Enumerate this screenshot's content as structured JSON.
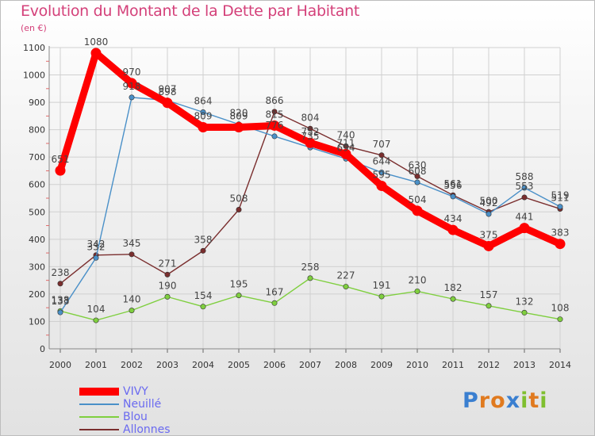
{
  "header": {
    "title": "Evolution du Montant de la Dette par Habitant",
    "unit": "(en €)"
  },
  "logo": {
    "text": "Proxiti"
  },
  "chart_data": {
    "type": "line",
    "title": "Evolution du Montant de la Dette par Habitant",
    "ylabel": "(en €)",
    "x": [
      "2000",
      "2001",
      "2002",
      "2003",
      "2004",
      "2005",
      "2006",
      "2007",
      "2008",
      "2009",
      "2010",
      "2011",
      "2012",
      "2013",
      "2014"
    ],
    "ylim": [
      0,
      1100
    ],
    "yticks": [
      "0",
      "100",
      "200",
      "300",
      "400",
      "500",
      "600",
      "700",
      "800",
      "900",
      "1000",
      "1100"
    ],
    "grid": true,
    "legend": "bottom-left",
    "series": [
      {
        "name": "VIVY",
        "color": "#ff0000",
        "values": [
          651,
          1080,
          970,
          898,
          809,
          809,
          815,
          752,
          711,
          595,
          504,
          434,
          375,
          441,
          383
        ],
        "labels": [
          "651",
          "1080",
          "970",
          "898",
          "809",
          "809",
          "815",
          "752",
          "711",
          "595",
          "504",
          "434",
          "375",
          "441",
          "383"
        ]
      },
      {
        "name": "Neuillé",
        "color": "#4a90c8",
        "values": [
          133,
          332,
          918,
          907,
          864,
          820,
          776,
          735,
          694,
          644,
          608,
          556,
          492,
          588,
          519
        ],
        "labels": [
          "133",
          "332",
          "918",
          "907",
          "864",
          "820",
          "776",
          "735",
          "694",
          "644",
          "608",
          "556",
          "492",
          "588",
          "519"
        ]
      },
      {
        "name": "Blou",
        "color": "#7fcf3f",
        "values": [
          138,
          104,
          140,
          190,
          154,
          195,
          167,
          258,
          227,
          191,
          210,
          182,
          157,
          132,
          108
        ],
        "labels": [
          "138",
          "104",
          "140",
          "190",
          "154",
          "195",
          "167",
          "258",
          "227",
          "191",
          "210",
          "182",
          "157",
          "132",
          "108"
        ]
      },
      {
        "name": "Allonnes",
        "color": "#7a2e2e",
        "values": [
          238,
          342,
          345,
          271,
          358,
          508,
          866,
          804,
          740,
          707,
          630,
          561,
          500,
          553,
          511
        ],
        "labels": [
          "238",
          "342",
          "345",
          "271",
          "358",
          "508",
          "866",
          "804",
          "740",
          "707",
          "630",
          "561",
          "500",
          "553",
          "511"
        ]
      }
    ]
  }
}
